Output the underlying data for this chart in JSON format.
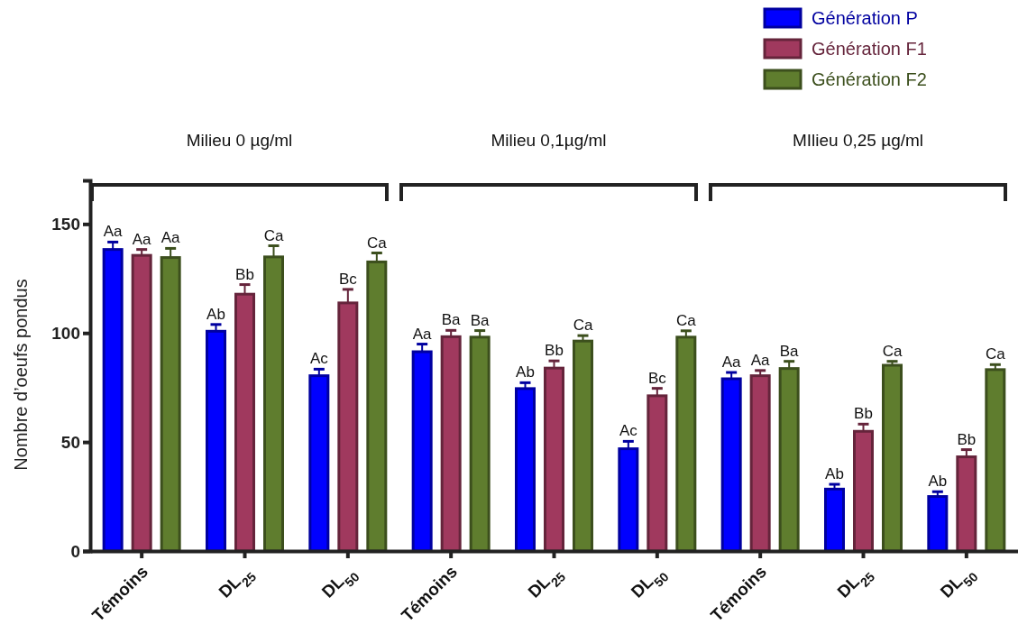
{
  "chart_data": {
    "type": "bar",
    "categories": [
      "Témoins",
      "DL$_{25}$",
      "DL$_{50}$",
      "Témoins",
      "DL$_{25}$",
      "DL$_{50}$",
      "Témoins",
      "DL$_{25}$",
      "DL$_{50}$"
    ],
    "series": [
      {
        "name": "Génération P",
        "color": "#0000ff",
        "values": [
          138.3,
          100.8,
          80.4,
          91.4,
          74.5,
          46.9,
          79,
          28.4,
          25
        ],
        "errors": [
          3.4,
          3.1,
          3,
          3.5,
          2.7,
          3.4,
          2.9,
          2.2,
          2.2
        ],
        "value_labels": [
          "Aa",
          "Ab",
          "Ac",
          "Aa",
          "Ab",
          "Ac",
          "Aa",
          "Ab",
          "Ab"
        ]
      },
      {
        "name": "Génération F1",
        "color": "#a0395e",
        "values": [
          135.6,
          117.8,
          113.8,
          98.3,
          83.9,
          71.2,
          80.4,
          54.9,
          43.2
        ],
        "errors": [
          2.7,
          4.4,
          6.2,
          2.9,
          3.3,
          3.4,
          2.4,
          3.3,
          3.3
        ],
        "value_labels": [
          "Aa",
          "Bb",
          "Bc",
          "Ba",
          "Bb",
          "Bc",
          "Aa",
          "Bb",
          "Bb"
        ]
      },
      {
        "name": "Génération F2",
        "color": "#5f7d2e",
        "values": [
          134.6,
          134.9,
          132.6,
          98.1,
          96.3,
          98.1,
          83.7,
          85.2,
          83.2
        ],
        "errors": [
          4.2,
          5.1,
          4.1,
          3,
          2.5,
          2.9,
          3.3,
          1.8,
          2.3
        ],
        "value_labels": [
          "Aa",
          "Ca",
          "Ca",
          "Ba",
          "Ca",
          "Ca",
          "Ba",
          "Ca",
          "Ca"
        ]
      }
    ],
    "ylabel": "Nombre d’oeufs pondus",
    "ylim": [
      0,
      170
    ],
    "yticks": [
      0,
      50,
      100,
      150
    ],
    "annotations": [
      "Milieu 0 µg/ml",
      "Milieu 0,1µg/ml",
      "MIlieu 0,25 µg/ml"
    ],
    "legend": "top right",
    "grid": false
  }
}
